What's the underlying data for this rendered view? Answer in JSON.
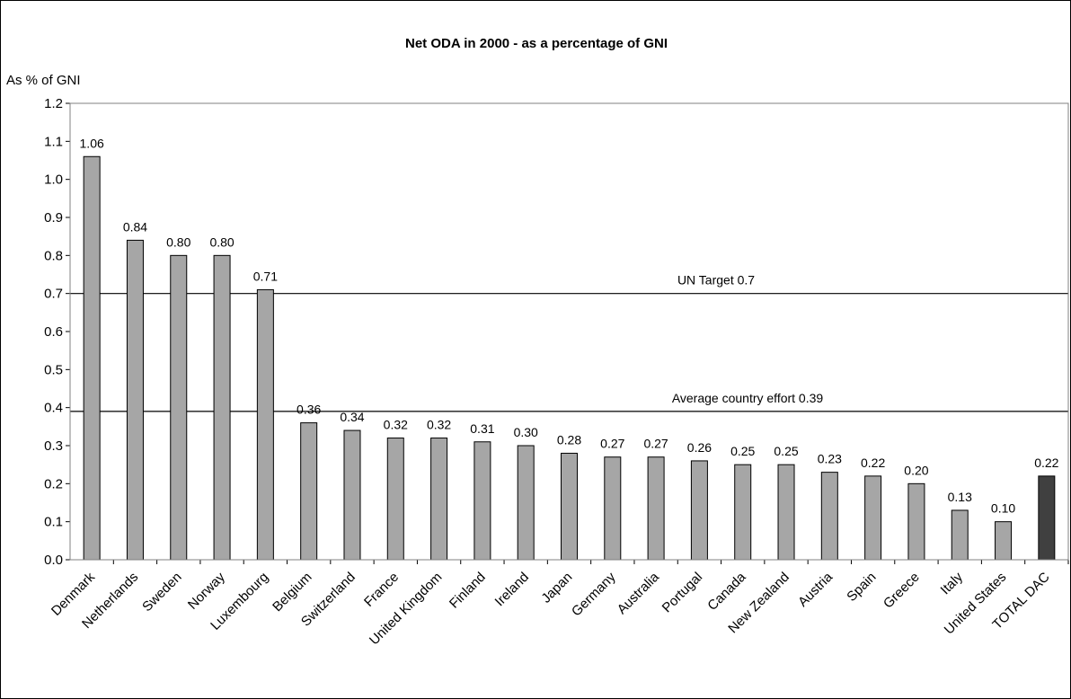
{
  "chart_data": {
    "type": "bar",
    "title": "Net ODA in 2000 - as a percentage of GNI",
    "ylabel": "As % of GNI",
    "xlabel": "",
    "ylim": [
      0,
      1.2
    ],
    "yticks": [
      "0.0",
      "0.1",
      "0.2",
      "0.3",
      "0.4",
      "0.5",
      "0.6",
      "0.7",
      "0.8",
      "0.9",
      "1.0",
      "1.1",
      "1.2"
    ],
    "categories": [
      "Denmark",
      "Netherlands",
      "Sweden",
      "Norway",
      "Luxembourg",
      "Belgium",
      "Switzerland",
      "France",
      "United Kingdom",
      "Finland",
      "Ireland",
      "Japan",
      "Germany",
      "Australia",
      "Portugal",
      "Canada",
      "New Zealand",
      "Austria",
      "Spain",
      "Greece",
      "Italy",
      "United States",
      "TOTAL DAC"
    ],
    "values": [
      1.06,
      0.84,
      0.8,
      0.8,
      0.71,
      0.36,
      0.34,
      0.32,
      0.32,
      0.31,
      0.3,
      0.28,
      0.27,
      0.27,
      0.26,
      0.25,
      0.25,
      0.23,
      0.22,
      0.2,
      0.13,
      0.1,
      0.22
    ],
    "data_labels": [
      "1.06",
      "0.84",
      "0.80",
      "0.80",
      "0.71",
      "0.36",
      "0.34",
      "0.32",
      "0.32",
      "0.31",
      "0.30",
      "0.28",
      "0.27",
      "0.27",
      "0.26",
      "0.25",
      "0.25",
      "0.23",
      "0.22",
      "0.20",
      "0.13",
      "0.10",
      "0.22"
    ],
    "bar_color": "#a6a6a6",
    "highlight_bar_color": "#404040",
    "highlight_category": "TOTAL DAC",
    "grid": false,
    "reference_lines": [
      {
        "label": "UN Target 0.7",
        "value": 0.7
      },
      {
        "label": "Average country effort 0.39",
        "value": 0.39
      }
    ]
  }
}
